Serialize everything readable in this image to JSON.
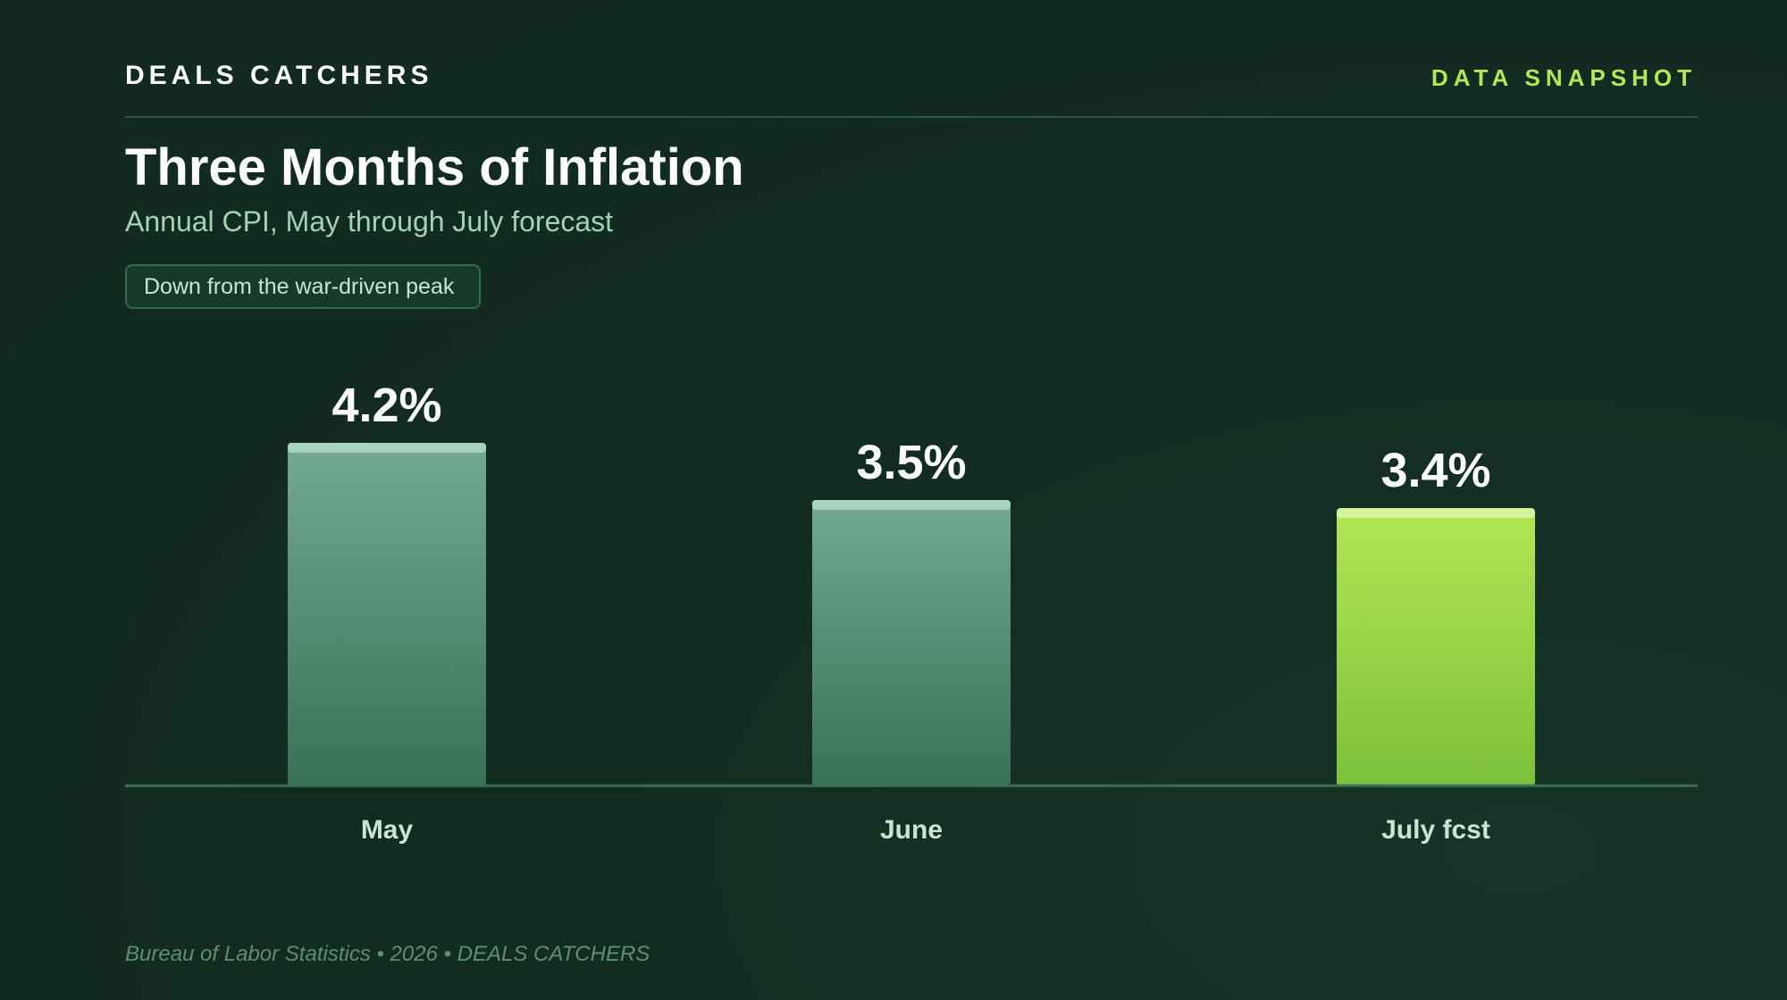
{
  "header": {
    "brand": "DEALS CATCHERS",
    "tagline": "DATA SNAPSHOT"
  },
  "title": "Three Months of Inflation",
  "subtitle": "Annual CPI, May through July forecast",
  "badge": "Down from the war-driven peak",
  "footer": "Bureau of Labor Statistics • 2026 • DEALS CATCHERS",
  "colors": {
    "background": "#132c21",
    "actual_bar": "#5a9a7e",
    "forecast_bar": "#9fd843",
    "accent": "#b3e854",
    "value_label": "#ffffff",
    "category_label": "#c6e6d1"
  },
  "chart_data": {
    "type": "bar",
    "title": "",
    "xlabel": "",
    "ylabel": "",
    "categories": [
      "May",
      "June",
      "July fcst"
    ],
    "values": [
      4.2,
      3.5,
      3.4
    ],
    "value_labels": [
      "4.2%",
      "3.5%",
      "3.4%"
    ],
    "unit": "%",
    "forecast": [
      false,
      false,
      true
    ],
    "ylim": [
      0,
      4.2
    ],
    "grid": false,
    "legend": "none"
  }
}
